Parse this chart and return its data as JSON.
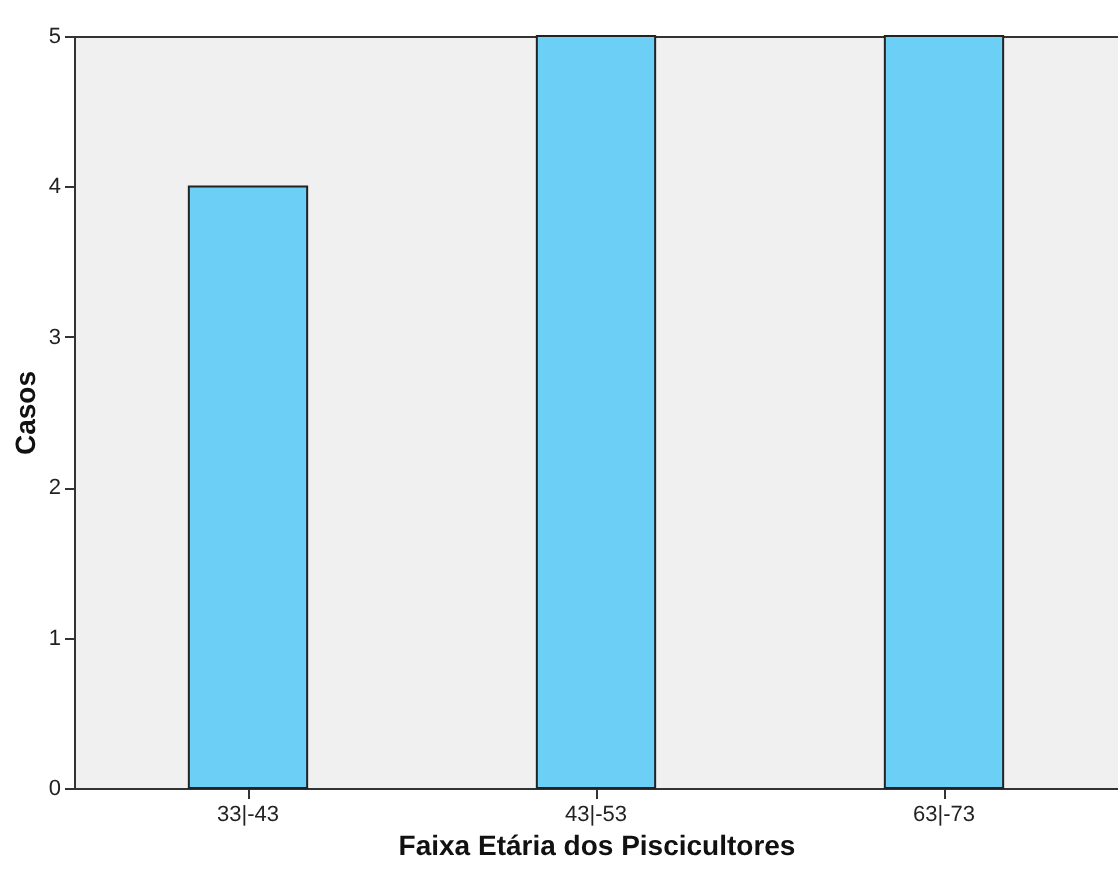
{
  "chart_data": {
    "type": "bar",
    "xlabel": "Faixa Etária dos Piscicultores",
    "ylabel": "Casos",
    "categories": [
      "33|-43",
      "43|-53",
      "63|-73"
    ],
    "values": [
      4,
      5,
      5
    ],
    "color": "#6bcff6",
    "ylim": [
      0,
      5
    ],
    "yticks": [
      0,
      1,
      2,
      3,
      4,
      5
    ],
    "grid": false
  }
}
